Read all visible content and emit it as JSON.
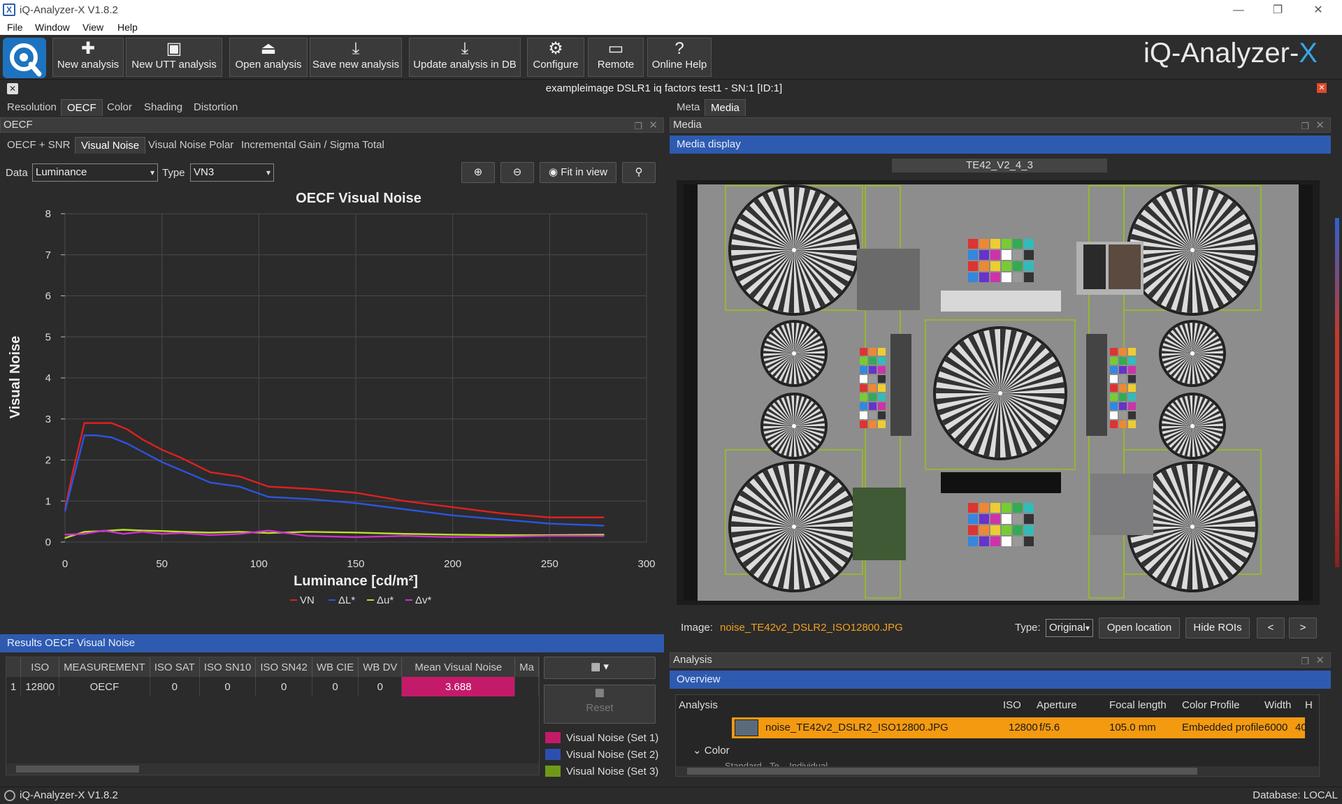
{
  "window": {
    "title": "iQ-Analyzer-X V1.8.2"
  },
  "menu": [
    "File",
    "Window",
    "View",
    "Help"
  ],
  "toolbar": {
    "new_analysis": "New analysis",
    "new_utt": "New UTT analysis",
    "open_analysis": "Open analysis",
    "save_analysis": "Save new analysis",
    "update_analysis": "Update analysis in DB",
    "configure": "Configure",
    "remote": "Remote",
    "online_help": "Online Help"
  },
  "brand": {
    "main": "iQ-Analyzer-",
    "accent": "X"
  },
  "document_title": "exampleimage DSLR1 iq factors test1 - SN:1 [ID:1]",
  "left": {
    "tabs": [
      "Resolution",
      "OECF",
      "Color",
      "Shading",
      "Distortion"
    ],
    "panel_title": "OECF",
    "subtabs": [
      "OECF + SNR",
      "Visual Noise",
      "Visual Noise Polar",
      "Incremental Gain / Sigma Total"
    ],
    "data_label": "Data",
    "data_value": "Luminance",
    "type_label": "Type",
    "type_value": "VN3",
    "fit_label": "Fit in view"
  },
  "chart_data": {
    "type": "line",
    "title": "OECF Visual Noise",
    "xlabel": "Luminance [cd/m²]",
    "ylabel": "Visual Noise",
    "xlim": [
      0,
      300
    ],
    "ylim": [
      0,
      8
    ],
    "xticks": [
      "0",
      "50",
      "100",
      "150",
      "200",
      "250",
      "300"
    ],
    "yticks": [
      "0",
      "1",
      "2",
      "3",
      "4",
      "5",
      "6",
      "7",
      "8"
    ],
    "grid": true,
    "legend_position": "bottom",
    "series": [
      {
        "name": "VN",
        "color": "#e02020",
        "x": [
          0,
          4,
          10,
          16,
          24,
          32,
          40,
          50,
          60,
          75,
          90,
          105,
          125,
          150,
          175,
          200,
          225,
          250,
          278
        ],
        "y": [
          0.8,
          1.7,
          2.9,
          2.9,
          2.9,
          2.75,
          2.5,
          2.25,
          2.05,
          1.7,
          1.6,
          1.35,
          1.3,
          1.2,
          1.0,
          0.85,
          0.7,
          0.6,
          0.6
        ]
      },
      {
        "name": "ΔL*",
        "color": "#2b55e0",
        "x": [
          0,
          4,
          10,
          16,
          24,
          32,
          40,
          50,
          60,
          75,
          90,
          105,
          125,
          150,
          175,
          200,
          225,
          250,
          278
        ],
        "y": [
          0.75,
          1.5,
          2.6,
          2.6,
          2.55,
          2.4,
          2.2,
          1.95,
          1.75,
          1.45,
          1.35,
          1.1,
          1.05,
          0.95,
          0.8,
          0.65,
          0.55,
          0.45,
          0.4
        ]
      },
      {
        "name": "Δu*",
        "color": "#b8e02a",
        "x": [
          0,
          10,
          20,
          30,
          40,
          50,
          60,
          75,
          90,
          105,
          125,
          150,
          175,
          200,
          225,
          250,
          278
        ],
        "y": [
          0.1,
          0.25,
          0.27,
          0.3,
          0.28,
          0.27,
          0.25,
          0.23,
          0.25,
          0.22,
          0.25,
          0.23,
          0.2,
          0.18,
          0.17,
          0.17,
          0.18
        ]
      },
      {
        "name": "Δv*",
        "color": "#d030d0",
        "x": [
          0,
          10,
          20,
          30,
          40,
          50,
          60,
          75,
          90,
          105,
          125,
          150,
          175,
          200,
          225,
          250,
          278
        ],
        "y": [
          0.18,
          0.2,
          0.28,
          0.2,
          0.25,
          0.2,
          0.22,
          0.17,
          0.2,
          0.28,
          0.15,
          0.12,
          0.15,
          0.12,
          0.13,
          0.15,
          0.15
        ]
      }
    ]
  },
  "results": {
    "title": "Results OECF Visual Noise",
    "columns": [
      "ISO",
      "MEASUREMENT",
      "ISO SAT",
      "ISO SN10",
      "ISO SN42",
      "WB CIE",
      "WB DV",
      "Mean Visual Noise",
      "Ma"
    ],
    "rows": [
      {
        "index": "1",
        "cells": [
          "12800",
          "OECF",
          "0",
          "0",
          "0",
          "0",
          "0",
          "3.688",
          ""
        ]
      }
    ],
    "reset_label": "Reset",
    "legend": [
      {
        "label": "Visual Noise (Set 1)",
        "color": "#c41a6a"
      },
      {
        "label": "Visual Noise (Set 2)",
        "color": "#2d4fb0"
      },
      {
        "label": "Visual Noise (Set 3)",
        "color": "#6e9a1a"
      }
    ]
  },
  "right": {
    "tabs": [
      "Meta",
      "Media"
    ],
    "panel_title": "Media",
    "media_display": "Media display",
    "chart_name": "TE42_V2_4_3",
    "image_label": "Image:",
    "image_file": "noise_TE42v2_DSLR2_ISO12800.JPG",
    "type_label": "Type:",
    "type_value": "Original",
    "open_location": "Open location",
    "hide_rois": "Hide ROIs",
    "prev": "<",
    "next": ">"
  },
  "analysis": {
    "panel_title": "Analysis",
    "overview": "Overview",
    "columns": [
      "Analysis",
      "ISO",
      "Aperture",
      "Focal length",
      "Color Profile",
      "Width",
      "H"
    ],
    "row": {
      "name": "noise_TE42v2_DSLR2_ISO12800.JPG",
      "iso": "12800",
      "aperture": "f/5.6",
      "focal": "105.0 mm",
      "profile": "Embedded profile",
      "width": "6000",
      "h": "40"
    },
    "group": "Color",
    "sub": "Standard - Te... Individual"
  },
  "status": {
    "left": "iQ-Analyzer-X V1.8.2",
    "right": "Database: LOCAL"
  }
}
